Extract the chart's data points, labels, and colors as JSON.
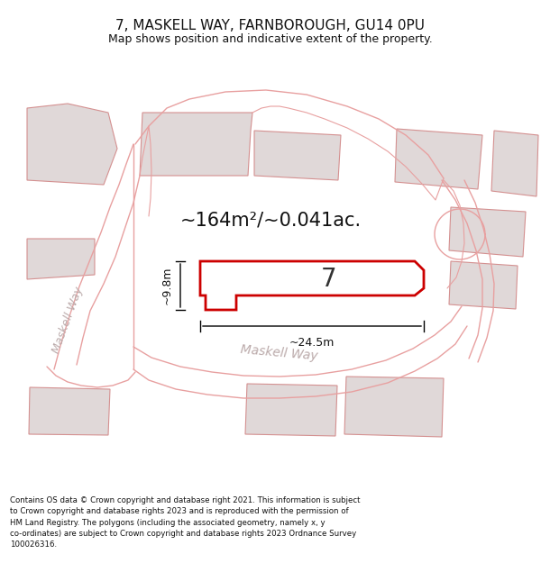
{
  "title": "7, MASKELL WAY, FARNBOROUGH, GU14 0PU",
  "subtitle": "Map shows position and indicative extent of the property.",
  "footer": "Contains OS data © Crown copyright and database right 2021. This information is subject\nto Crown copyright and database rights 2023 and is reproduced with the permission of\nHM Land Registry. The polygons (including the associated geometry, namely x, y\nco-ordinates) are subject to Crown copyright and database rights 2023 Ordnance Survey\n100026316.",
  "area_label": "~164m²/~0.041ac.",
  "width_label": "~24.5m",
  "height_label": "~9.8m",
  "plot_number": "7",
  "road_label_left": "Maskell Way",
  "road_label_center": "Maskell Way",
  "bg_color": "#ffffff",
  "plot_fill": "#ffffff",
  "plot_edge": "#cc0000",
  "bld_fill": "#e0d8d8",
  "bld_edge": "#d49090",
  "road_edge": "#e8a0a0",
  "dim_color": "#000000",
  "text_color": "#333333",
  "road_label_color": "#bbaaaa"
}
